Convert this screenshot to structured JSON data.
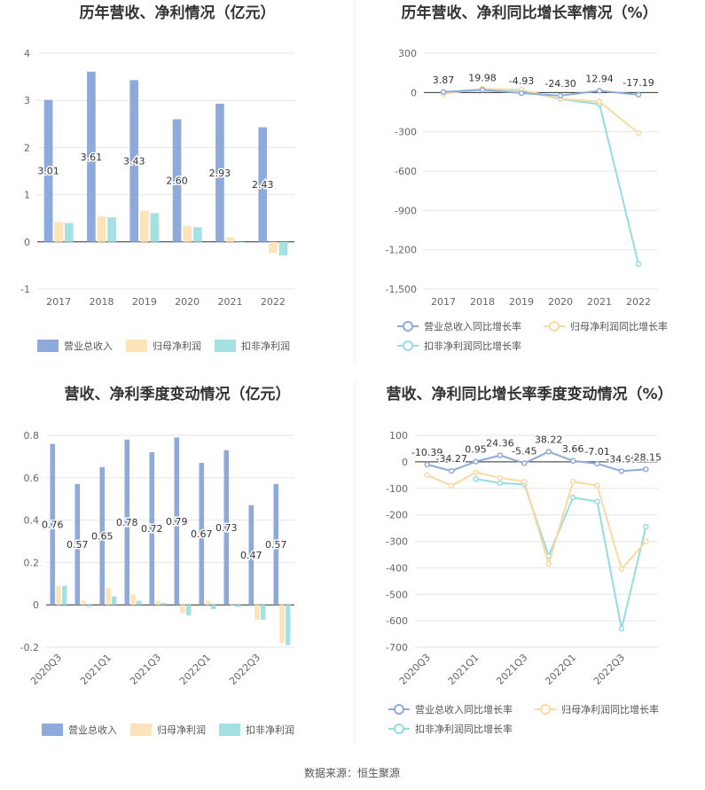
{
  "source_text": "数据来源：恒生聚源",
  "colors": {
    "revenue": "#8eaadb",
    "net_profit": "#fde4b8",
    "deducted_profit": "#a5e0e3",
    "revenue_line": "#8eaadb",
    "net_profit_line": "#fad9a0",
    "deducted_line": "#96dbe0"
  },
  "chart_data": [
    {
      "type": "bar",
      "title": "历年营收、净利情况（亿元）",
      "categories": [
        "2017",
        "2018",
        "2019",
        "2020",
        "2021",
        "2022"
      ],
      "ylim": [
        -1,
        4
      ],
      "yticks": [
        "4",
        "3",
        "2",
        "1",
        "0",
        "-1"
      ],
      "ytick_values": [
        4,
        3,
        2,
        1,
        0,
        -1
      ],
      "series": [
        {
          "name": "营业总收入",
          "values": [
            3.01,
            3.61,
            3.43,
            2.6,
            2.93,
            2.43
          ],
          "labels": [
            "3.01",
            "3.61",
            "3.43",
            "2.60",
            "2.93",
            "2.43"
          ]
        },
        {
          "name": "归母净利润",
          "values": [
            0.42,
            0.54,
            0.66,
            0.34,
            0.1,
            -0.23
          ]
        },
        {
          "name": "扣非净利润",
          "values": [
            0.4,
            0.52,
            0.61,
            0.31,
            0.0,
            -0.29
          ]
        }
      ],
      "legend": "bottom"
    },
    {
      "type": "line",
      "title": "历年营收、净利同比增长率情况（%）",
      "categories": [
        "2017",
        "2018",
        "2019",
        "2020",
        "2021",
        "2022"
      ],
      "ylim": [
        -1500,
        300
      ],
      "yticks": [
        "300",
        "0",
        "-300",
        "-600",
        "-900",
        "-1,200",
        "-1,500"
      ],
      "ytick_values": [
        300,
        0,
        -300,
        -600,
        -900,
        -1200,
        -1500
      ],
      "series": [
        {
          "name": "营业总收入同比增长率",
          "values": [
            3.87,
            19.98,
            -4.93,
            -24.3,
            12.94,
            -17.19
          ],
          "labels": [
            "3.87",
            "19.98",
            "-4.93",
            "-24.30",
            "12.94",
            "-17.19"
          ]
        },
        {
          "name": "归母净利润同比增长率",
          "values": [
            -10,
            28,
            22,
            -48,
            -70,
            -310
          ]
        },
        {
          "name": "扣非净利润同比增长率",
          "values": [
            2,
            25,
            15,
            -50,
            -90,
            -1310
          ]
        }
      ],
      "legend": "bottom"
    },
    {
      "type": "bar",
      "title": "营收、净利季度变动情况（亿元）",
      "categories": [
        "2020Q3",
        "2020Q4",
        "2021Q1",
        "2021Q2",
        "2021Q3",
        "2021Q4",
        "2022Q1",
        "2022Q2",
        "2022Q3",
        "2022Q4"
      ],
      "xtick_labels": [
        "2020Q3",
        "",
        "2021Q1",
        "",
        "2021Q3",
        "",
        "2022Q1",
        "",
        "2022Q3",
        ""
      ],
      "ylim": [
        -0.2,
        0.8
      ],
      "yticks": [
        "0.8",
        "0.6",
        "0.4",
        "0.2",
        "0",
        "-0.2"
      ],
      "ytick_values": [
        0.8,
        0.6,
        0.4,
        0.2,
        0,
        -0.2
      ],
      "series": [
        {
          "name": "营业总收入",
          "values": [
            0.76,
            0.57,
            0.65,
            0.78,
            0.72,
            0.79,
            0.67,
            0.73,
            0.47,
            0.57
          ],
          "labels": [
            "0.76",
            "0.57",
            "0.65",
            "0.78",
            "0.72",
            "0.79",
            "0.67",
            "0.73",
            "0.47",
            "0.57"
          ]
        },
        {
          "name": "归母净利润",
          "values": [
            0.09,
            0.02,
            0.08,
            0.05,
            0.02,
            -0.04,
            0.02,
            0.0,
            -0.07,
            -0.18
          ]
        },
        {
          "name": "扣非净利润",
          "values": [
            0.09,
            -0.01,
            0.04,
            0.02,
            0.01,
            -0.05,
            -0.02,
            -0.01,
            -0.07,
            -0.19
          ]
        }
      ],
      "legend": "bottom"
    },
    {
      "type": "line",
      "title": "营收、净利同比增长率季度变动情况（%）",
      "categories": [
        "2020Q3",
        "2020Q4",
        "2021Q1",
        "2021Q2",
        "2021Q3",
        "2021Q4",
        "2022Q1",
        "2022Q2",
        "2022Q3",
        "2022Q4"
      ],
      "xtick_labels": [
        "2020Q3",
        "",
        "2021Q1",
        "",
        "2021Q3",
        "",
        "2022Q1",
        "",
        "2022Q3",
        ""
      ],
      "ylim": [
        -700,
        100
      ],
      "yticks": [
        "100",
        "0",
        "-100",
        "-200",
        "-300",
        "-400",
        "-500",
        "-600",
        "-700"
      ],
      "ytick_values": [
        100,
        0,
        -100,
        -200,
        -300,
        -400,
        -500,
        -600,
        -700
      ],
      "series": [
        {
          "name": "营业总收入同比增长率",
          "values": [
            -10.39,
            -34.27,
            0.95,
            24.36,
            -5.45,
            38.22,
            3.66,
            -7.01,
            -34.99,
            -28.15
          ],
          "labels": [
            "-10.39",
            "-34.27",
            "0.95",
            "24.36",
            "-5.45",
            "38.22",
            "3.66",
            "-7.01",
            "-34.99",
            "-28.15"
          ]
        },
        {
          "name": "归母净利润同比增长率",
          "values": [
            -50,
            -90,
            -40,
            -60,
            -75,
            -385,
            -75,
            -90,
            -405,
            -300
          ]
        },
        {
          "name": "扣非净利润同比增长率",
          "values": [
            null,
            null,
            -65,
            -80,
            -85,
            -355,
            -135,
            -150,
            -630,
            -245
          ]
        }
      ],
      "legend": "bottom"
    }
  ]
}
